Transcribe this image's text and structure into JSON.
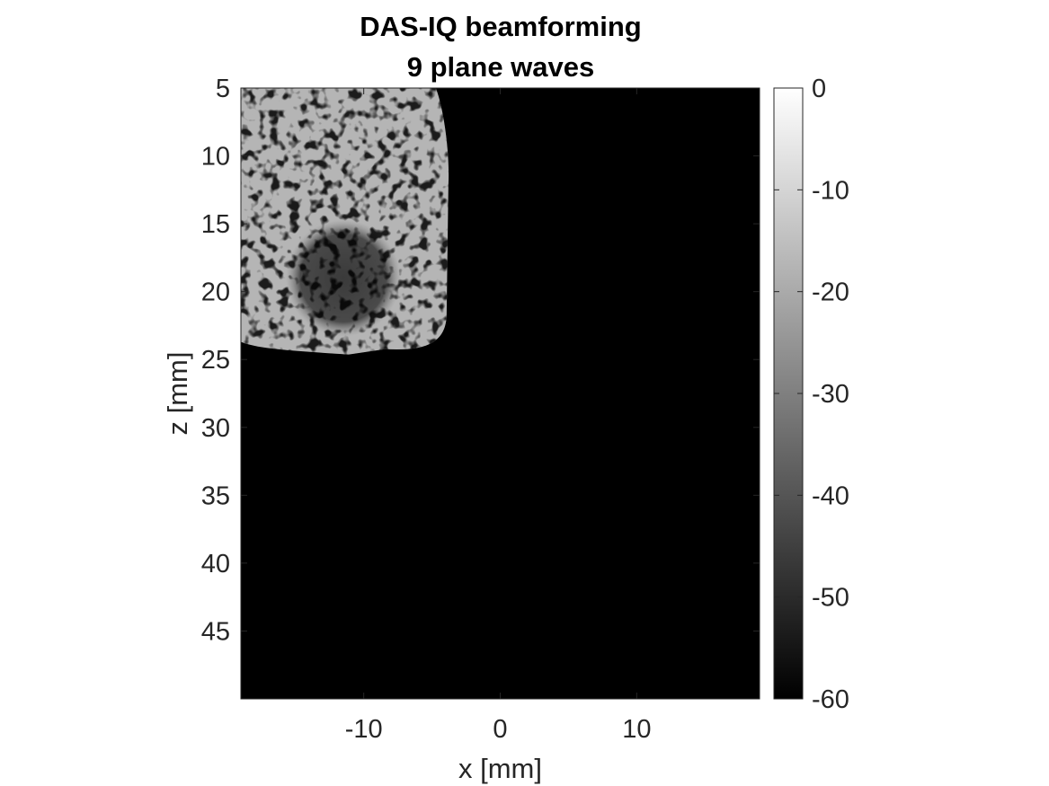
{
  "chart_data": {
    "type": "heatmap",
    "title": [
      "DAS-IQ beamforming",
      "9 plane waves"
    ],
    "xlabel": "x [mm]",
    "ylabel": "z [mm]",
    "xlim": [
      -19,
      19
    ],
    "ylim": [
      5,
      50
    ],
    "y_reversed": true,
    "x_ticks": [
      -10,
      0,
      10
    ],
    "x_tick_labels": [
      "-10",
      "0",
      "10"
    ],
    "y_ticks": [
      5,
      10,
      15,
      20,
      25,
      30,
      35,
      40,
      45
    ],
    "y_tick_labels": [
      "5",
      "10",
      "15",
      "20",
      "25",
      "30",
      "35",
      "40",
      "45"
    ],
    "colormap": "gray",
    "colorbar": {
      "range": [
        -60,
        0
      ],
      "ticks": [
        0,
        -10,
        -20,
        -30,
        -40,
        -50,
        -60
      ],
      "tick_labels": [
        "0",
        "-10",
        "-20",
        "-30",
        "-40",
        "-50",
        "-60"
      ]
    },
    "background_level_db": -60,
    "regions": [
      {
        "name": "speckle",
        "x_range": [
          -19,
          -3.8
        ],
        "z_range": [
          5,
          24.5
        ],
        "mean_level_db": -8
      },
      {
        "name": "cyst",
        "center": [
          -11.5,
          19
        ],
        "radius_x": 4.2,
        "radius_z": 4.3,
        "mean_level_db": -28
      }
    ],
    "grid": false,
    "legend": "none"
  },
  "colors": {
    "axes": "#262626",
    "background_image": "#000000",
    "figure_background": "#ffffff"
  }
}
